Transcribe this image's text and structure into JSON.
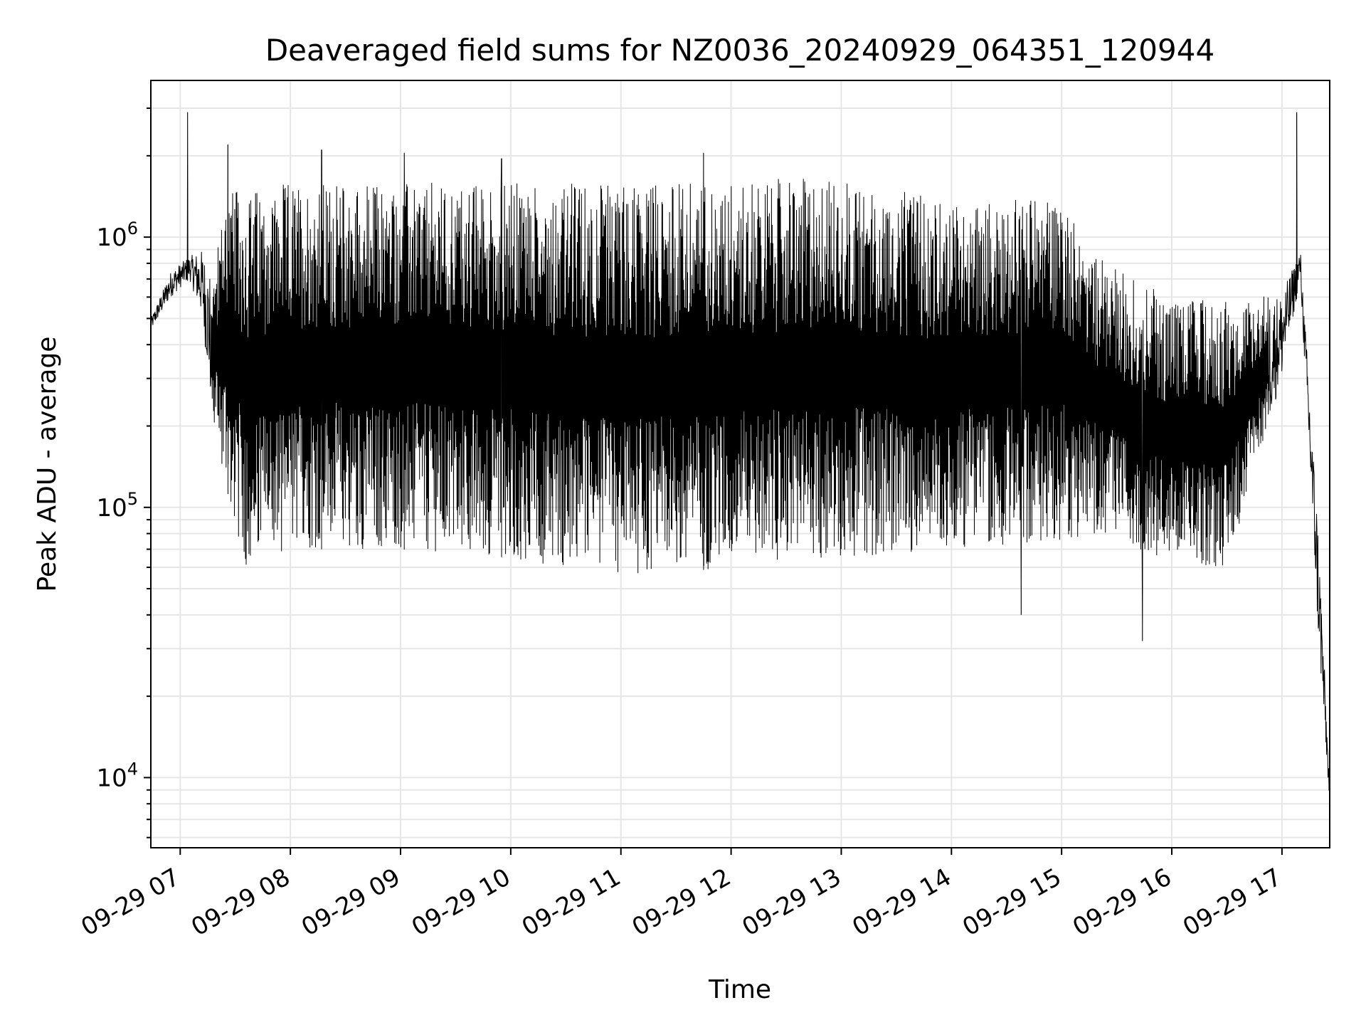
{
  "chart_data": {
    "type": "line",
    "title": "Deaveraged field sums for NZ0036_20240929_064351_120944",
    "xlabel": "Time",
    "ylabel": "Peak ADU - average",
    "y_scale": "log",
    "ylim": [
      5500,
      3800000
    ],
    "xlim": [
      "2024-09-29 06:44",
      "2024-09-29 17:26"
    ],
    "grid": true,
    "colors": {
      "series": "#000000",
      "grid": "#e6e6e6"
    },
    "x_ticks": [
      {
        "label": "09-29 07",
        "value": "2024-09-29 07:00"
      },
      {
        "label": "09-29 08",
        "value": "2024-09-29 08:00"
      },
      {
        "label": "09-29 09",
        "value": "2024-09-29 09:00"
      },
      {
        "label": "09-29 10",
        "value": "2024-09-29 10:00"
      },
      {
        "label": "09-29 11",
        "value": "2024-09-29 11:00"
      },
      {
        "label": "09-29 12",
        "value": "2024-09-29 12:00"
      },
      {
        "label": "09-29 13",
        "value": "2024-09-29 13:00"
      },
      {
        "label": "09-29 14",
        "value": "2024-09-29 14:00"
      },
      {
        "label": "09-29 15",
        "value": "2024-09-29 15:00"
      },
      {
        "label": "09-29 16",
        "value": "2024-09-29 16:00"
      },
      {
        "label": "09-29 17",
        "value": "2024-09-29 17:00"
      }
    ],
    "y_ticks": [
      {
        "base": "10",
        "exp": "4",
        "value": 10000
      },
      {
        "base": "10",
        "exp": "5",
        "value": 100000
      },
      {
        "base": "10",
        "exp": "6",
        "value": 1000000
      }
    ],
    "series": [
      {
        "x": [
          "2024-09-29 06:44",
          "2024-09-29 06:55",
          "2024-09-29 07:05",
          "2024-09-29 07:12",
          "2024-09-29 07:18",
          "2024-09-29 07:25",
          "2024-09-29 07:35",
          "2024-09-29 08:00",
          "2024-09-29 09:00",
          "2024-09-29 10:00",
          "2024-09-29 11:00",
          "2024-09-29 12:00",
          "2024-09-29 13:00",
          "2024-09-29 14:00",
          "2024-09-29 15:00",
          "2024-09-29 15:20",
          "2024-09-29 15:40",
          "2024-09-29 16:00",
          "2024-09-29 16:30",
          "2024-09-29 17:00",
          "2024-09-29 17:10",
          "2024-09-29 17:20",
          "2024-09-29 17:26"
        ],
        "high": [
          500000,
          750000,
          850000,
          900000,
          700000,
          1500000,
          1500000,
          1600000,
          1600000,
          1600000,
          1600000,
          1650000,
          1650000,
          1350000,
          1450000,
          850000,
          700000,
          600000,
          580000,
          620000,
          900000,
          80000,
          9000
        ],
        "low": [
          450000,
          600000,
          700000,
          500000,
          200000,
          120000,
          60000,
          70000,
          70000,
          65000,
          55000,
          60000,
          65000,
          70000,
          75000,
          80000,
          70000,
          60000,
          60000,
          300000,
          700000,
          30000,
          8000
        ],
        "spikes": [
          {
            "x": "2024-09-29 07:04",
            "y": 2900000
          },
          {
            "x": "2024-09-29 07:26",
            "y": 2200000
          },
          {
            "x": "2024-09-29 08:17",
            "y": 2100000
          },
          {
            "x": "2024-09-29 09:02",
            "y": 2050000
          },
          {
            "x": "2024-09-29 09:55",
            "y": 1950000
          },
          {
            "x": "2024-09-29 11:45",
            "y": 2050000
          },
          {
            "x": "2024-09-29 15:44",
            "y": 32000
          },
          {
            "x": "2024-09-29 14:38",
            "y": 40000
          },
          {
            "x": "2024-09-29 17:08",
            "y": 2900000
          }
        ]
      }
    ]
  }
}
